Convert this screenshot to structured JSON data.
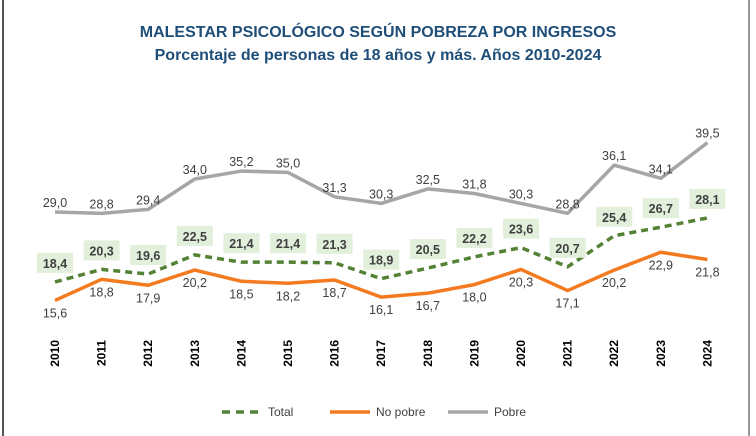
{
  "chart_data": {
    "type": "line",
    "title": "MALESTAR PSICOLÓGICO SEGÚN POBREZA POR INGRESOS",
    "subtitle": "Porcentaje de personas de 18 años y más. Años 2010-2024",
    "categories": [
      "2010",
      "2011",
      "2012",
      "2013",
      "2014",
      "2015",
      "2016",
      "2017",
      "2018",
      "2019",
      "2020",
      "2021",
      "2022",
      "2023",
      "2024"
    ],
    "series": [
      {
        "name": "Total",
        "color": "#548235",
        "style": "dashed",
        "values": [
          18.4,
          20.3,
          19.6,
          22.5,
          21.4,
          21.4,
          21.3,
          18.9,
          20.5,
          22.2,
          23.6,
          20.7,
          25.4,
          26.7,
          28.1
        ],
        "labels": [
          "18,4",
          "20,3",
          "19,6",
          "22,5",
          "21,4",
          "21,4",
          "21,3",
          "18,9",
          "20,5",
          "22,2",
          "23,6",
          "20,7",
          "25,4",
          "26,7",
          "28,1"
        ]
      },
      {
        "name": "No pobre",
        "color": "#f47a20",
        "style": "solid",
        "values": [
          15.6,
          18.8,
          17.9,
          20.2,
          18.5,
          18.2,
          18.7,
          16.1,
          16.7,
          18.0,
          20.3,
          17.1,
          20.2,
          22.9,
          21.8
        ],
        "labels": [
          "15,6",
          "18,8",
          "17,9",
          "20,2",
          "18,5",
          "18,2",
          "18,7",
          "16,1",
          "16,7",
          "18,0",
          "20,3",
          "17,1",
          "20,2",
          "22,9",
          "21,8"
        ]
      },
      {
        "name": "Pobre",
        "color": "#a6a6a6",
        "style": "solid",
        "values": [
          29.0,
          28.8,
          29.4,
          34.0,
          35.2,
          35.0,
          31.3,
          30.3,
          32.5,
          31.8,
          30.3,
          28.8,
          36.1,
          34.1,
          39.5
        ],
        "labels": [
          "29,0",
          "28,8",
          "29,4",
          "34,0",
          "35,2",
          "35,0",
          "31,3",
          "30,3",
          "32,5",
          "31,8",
          "30,3",
          "28,8",
          "36,1",
          "34,1",
          "39,5"
        ]
      }
    ],
    "xlabel": "",
    "ylabel": "",
    "grid": false,
    "legend": "bottom"
  }
}
